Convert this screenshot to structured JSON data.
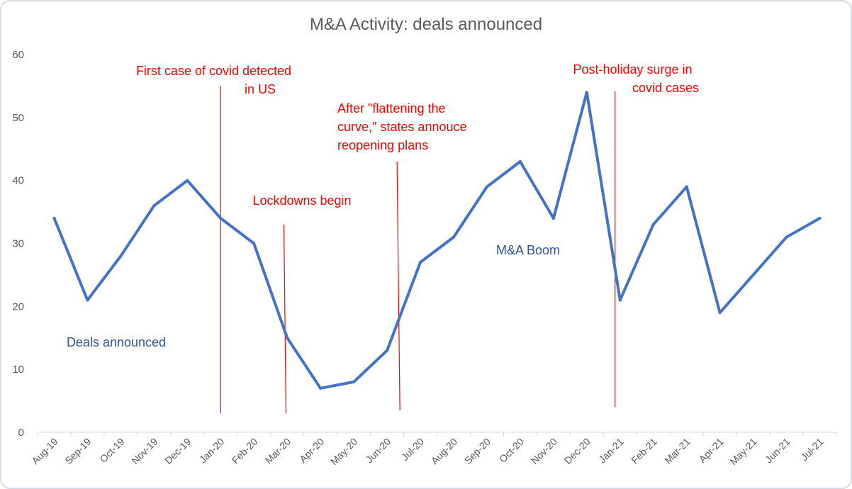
{
  "chart_data": {
    "type": "line",
    "title": "M&A Activity: deals announced",
    "xlabel": "",
    "ylabel": "",
    "ylim": [
      0,
      60
    ],
    "yticks": [
      0,
      10,
      20,
      30,
      40,
      50,
      60
    ],
    "grid": false,
    "categories": [
      "Aug-19",
      "Sep-19",
      "Oct-19",
      "Nov-19",
      "Dec-19",
      "Jan-20",
      "Feb-20",
      "Mar-20",
      "Apr-20",
      "May-20",
      "Jun-20",
      "Jul-20",
      "Aug-20",
      "Sep-20",
      "Oct-20",
      "Nov-20",
      "Dec-20",
      "Jan-21",
      "Feb-21",
      "Mar-21",
      "Apr-21",
      "May-21",
      "Jun-21",
      "Jul-21"
    ],
    "series": [
      {
        "name": "Deals announced",
        "color": "#4472c4",
        "values": [
          34,
          21,
          28,
          36,
          40,
          34,
          30,
          15,
          7,
          8,
          13,
          27,
          31,
          39,
          43,
          34,
          54,
          21,
          33,
          39,
          19,
          25,
          31,
          34
        ]
      }
    ],
    "event_lines": [
      {
        "name": "first-case-line",
        "x": 5.0,
        "y_top": 55,
        "y_bottom": 3,
        "color": "#ff0000"
      },
      {
        "name": "lockdowns-line",
        "x": 6.9,
        "y_top": 33,
        "y_bottom": 3,
        "color": "#ff0000"
      },
      {
        "name": "reopening-line",
        "x": 10.3,
        "y_top": 43,
        "y_bottom": 3.5,
        "color": "#ff0000"
      },
      {
        "name": "post-holiday-line",
        "x": 16.85,
        "y_top": 54.2,
        "y_bottom": 4,
        "color": "#ff0000"
      }
    ],
    "annotations": {
      "first_case": [
        "First case of covid detected",
        "in US"
      ],
      "lockdowns": [
        "Lockdowns begin"
      ],
      "reopening": [
        "After \"flattening the",
        "curve,\" states annouce",
        "reopening plans"
      ],
      "post_holiday": [
        "Post-holiday surge in",
        "covid cases"
      ],
      "ma_boom": [
        "M&A Boom"
      ],
      "series_label": [
        "Deals announced"
      ]
    },
    "colors": {
      "annotation_red": "#ff0000",
      "annotation_blue": "#2f5597",
      "axis": "#d9d9d9",
      "text": "#595959"
    }
  }
}
